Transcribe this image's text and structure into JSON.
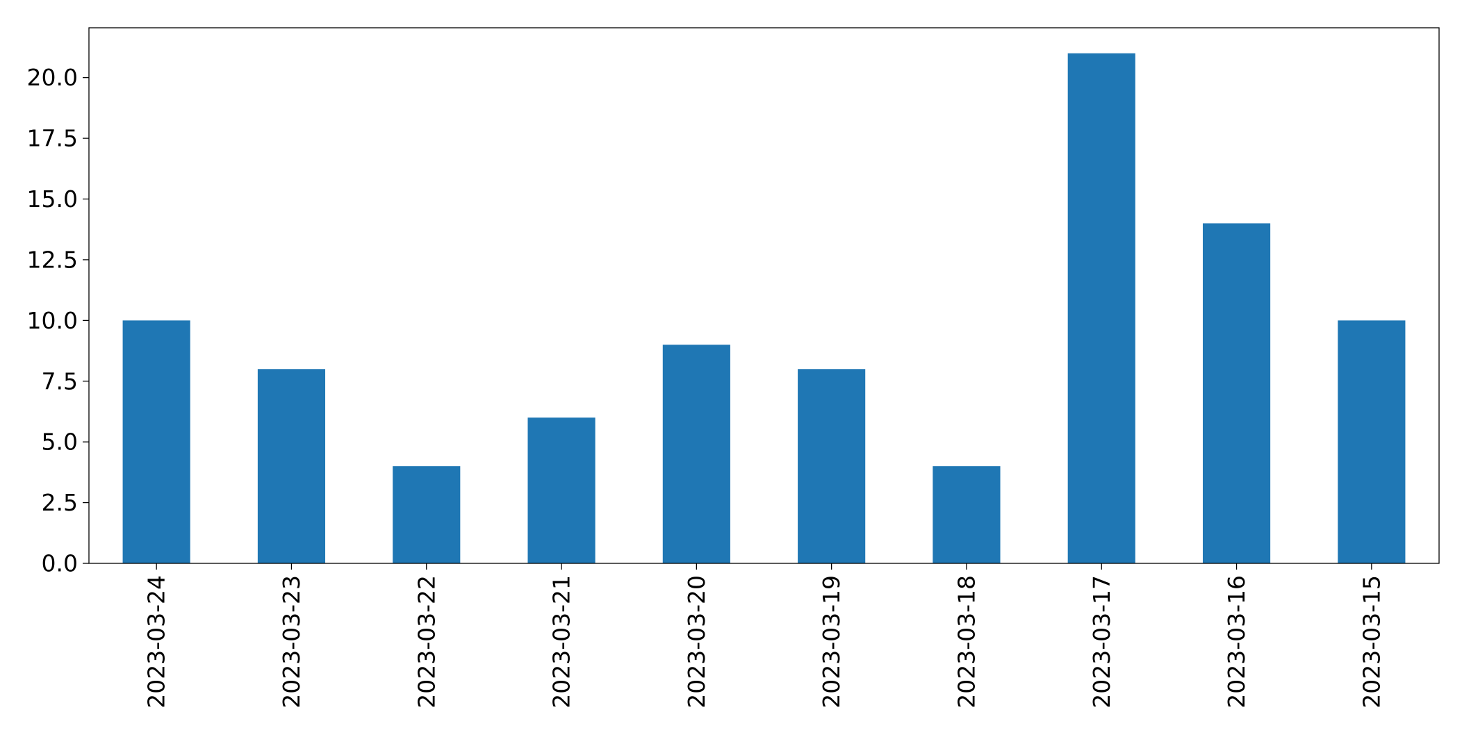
{
  "chart_data": {
    "type": "bar",
    "title": "",
    "xlabel": "",
    "ylabel": "",
    "categories": [
      "2023-03-24",
      "2023-03-23",
      "2023-03-22",
      "2023-03-21",
      "2023-03-20",
      "2023-03-19",
      "2023-03-18",
      "2023-03-17",
      "2023-03-16",
      "2023-03-15"
    ],
    "values": [
      10,
      8,
      4,
      6,
      9,
      8,
      4,
      21,
      14,
      10
    ],
    "ylim": [
      0,
      22.05
    ],
    "yticks": [
      "0.0",
      "2.5",
      "5.0",
      "7.5",
      "10.0",
      "12.5",
      "15.0",
      "17.5",
      "20.0"
    ],
    "bar_color": "#1f77b4",
    "grid": false,
    "legend": "none"
  }
}
